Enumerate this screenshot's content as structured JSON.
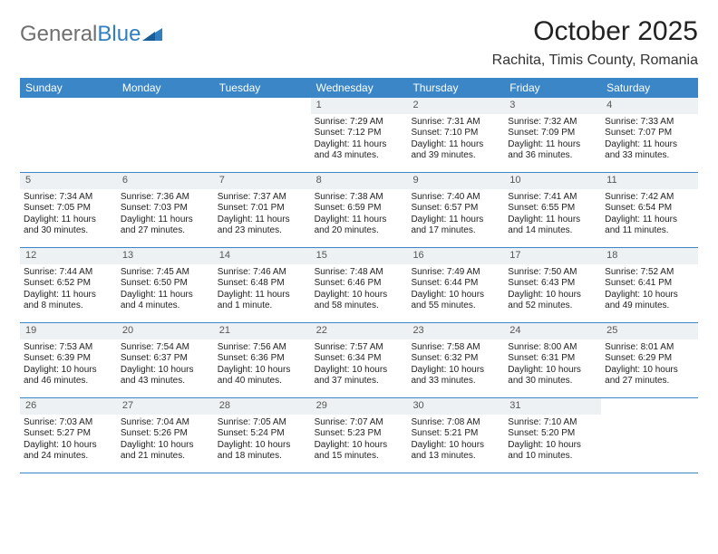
{
  "logo": {
    "text_gray": "General",
    "text_blue": "Blue"
  },
  "header": {
    "month_title": "October 2025",
    "location": "Rachita, Timis County, Romania"
  },
  "colors": {
    "header_bar": "#3b86c6",
    "daynum_bg": "#eef1f3",
    "row_border": "#3b86c6",
    "logo_gray": "#6f6f6f",
    "logo_blue": "#2f7fc1"
  },
  "day_names": [
    "Sunday",
    "Monday",
    "Tuesday",
    "Wednesday",
    "Thursday",
    "Friday",
    "Saturday"
  ],
  "weeks": [
    [
      {
        "n": "",
        "lines": []
      },
      {
        "n": "",
        "lines": []
      },
      {
        "n": "",
        "lines": []
      },
      {
        "n": "1",
        "lines": [
          "Sunrise: 7:29 AM",
          "Sunset: 7:12 PM",
          "Daylight: 11 hours",
          "and 43 minutes."
        ]
      },
      {
        "n": "2",
        "lines": [
          "Sunrise: 7:31 AM",
          "Sunset: 7:10 PM",
          "Daylight: 11 hours",
          "and 39 minutes."
        ]
      },
      {
        "n": "3",
        "lines": [
          "Sunrise: 7:32 AM",
          "Sunset: 7:09 PM",
          "Daylight: 11 hours",
          "and 36 minutes."
        ]
      },
      {
        "n": "4",
        "lines": [
          "Sunrise: 7:33 AM",
          "Sunset: 7:07 PM",
          "Daylight: 11 hours",
          "and 33 minutes."
        ]
      }
    ],
    [
      {
        "n": "5",
        "lines": [
          "Sunrise: 7:34 AM",
          "Sunset: 7:05 PM",
          "Daylight: 11 hours",
          "and 30 minutes."
        ]
      },
      {
        "n": "6",
        "lines": [
          "Sunrise: 7:36 AM",
          "Sunset: 7:03 PM",
          "Daylight: 11 hours",
          "and 27 minutes."
        ]
      },
      {
        "n": "7",
        "lines": [
          "Sunrise: 7:37 AM",
          "Sunset: 7:01 PM",
          "Daylight: 11 hours",
          "and 23 minutes."
        ]
      },
      {
        "n": "8",
        "lines": [
          "Sunrise: 7:38 AM",
          "Sunset: 6:59 PM",
          "Daylight: 11 hours",
          "and 20 minutes."
        ]
      },
      {
        "n": "9",
        "lines": [
          "Sunrise: 7:40 AM",
          "Sunset: 6:57 PM",
          "Daylight: 11 hours",
          "and 17 minutes."
        ]
      },
      {
        "n": "10",
        "lines": [
          "Sunrise: 7:41 AM",
          "Sunset: 6:55 PM",
          "Daylight: 11 hours",
          "and 14 minutes."
        ]
      },
      {
        "n": "11",
        "lines": [
          "Sunrise: 7:42 AM",
          "Sunset: 6:54 PM",
          "Daylight: 11 hours",
          "and 11 minutes."
        ]
      }
    ],
    [
      {
        "n": "12",
        "lines": [
          "Sunrise: 7:44 AM",
          "Sunset: 6:52 PM",
          "Daylight: 11 hours",
          "and 8 minutes."
        ]
      },
      {
        "n": "13",
        "lines": [
          "Sunrise: 7:45 AM",
          "Sunset: 6:50 PM",
          "Daylight: 11 hours",
          "and 4 minutes."
        ]
      },
      {
        "n": "14",
        "lines": [
          "Sunrise: 7:46 AM",
          "Sunset: 6:48 PM",
          "Daylight: 11 hours",
          "and 1 minute."
        ]
      },
      {
        "n": "15",
        "lines": [
          "Sunrise: 7:48 AM",
          "Sunset: 6:46 PM",
          "Daylight: 10 hours",
          "and 58 minutes."
        ]
      },
      {
        "n": "16",
        "lines": [
          "Sunrise: 7:49 AM",
          "Sunset: 6:44 PM",
          "Daylight: 10 hours",
          "and 55 minutes."
        ]
      },
      {
        "n": "17",
        "lines": [
          "Sunrise: 7:50 AM",
          "Sunset: 6:43 PM",
          "Daylight: 10 hours",
          "and 52 minutes."
        ]
      },
      {
        "n": "18",
        "lines": [
          "Sunrise: 7:52 AM",
          "Sunset: 6:41 PM",
          "Daylight: 10 hours",
          "and 49 minutes."
        ]
      }
    ],
    [
      {
        "n": "19",
        "lines": [
          "Sunrise: 7:53 AM",
          "Sunset: 6:39 PM",
          "Daylight: 10 hours",
          "and 46 minutes."
        ]
      },
      {
        "n": "20",
        "lines": [
          "Sunrise: 7:54 AM",
          "Sunset: 6:37 PM",
          "Daylight: 10 hours",
          "and 43 minutes."
        ]
      },
      {
        "n": "21",
        "lines": [
          "Sunrise: 7:56 AM",
          "Sunset: 6:36 PM",
          "Daylight: 10 hours",
          "and 40 minutes."
        ]
      },
      {
        "n": "22",
        "lines": [
          "Sunrise: 7:57 AM",
          "Sunset: 6:34 PM",
          "Daylight: 10 hours",
          "and 37 minutes."
        ]
      },
      {
        "n": "23",
        "lines": [
          "Sunrise: 7:58 AM",
          "Sunset: 6:32 PM",
          "Daylight: 10 hours",
          "and 33 minutes."
        ]
      },
      {
        "n": "24",
        "lines": [
          "Sunrise: 8:00 AM",
          "Sunset: 6:31 PM",
          "Daylight: 10 hours",
          "and 30 minutes."
        ]
      },
      {
        "n": "25",
        "lines": [
          "Sunrise: 8:01 AM",
          "Sunset: 6:29 PM",
          "Daylight: 10 hours",
          "and 27 minutes."
        ]
      }
    ],
    [
      {
        "n": "26",
        "lines": [
          "Sunrise: 7:03 AM",
          "Sunset: 5:27 PM",
          "Daylight: 10 hours",
          "and 24 minutes."
        ]
      },
      {
        "n": "27",
        "lines": [
          "Sunrise: 7:04 AM",
          "Sunset: 5:26 PM",
          "Daylight: 10 hours",
          "and 21 minutes."
        ]
      },
      {
        "n": "28",
        "lines": [
          "Sunrise: 7:05 AM",
          "Sunset: 5:24 PM",
          "Daylight: 10 hours",
          "and 18 minutes."
        ]
      },
      {
        "n": "29",
        "lines": [
          "Sunrise: 7:07 AM",
          "Sunset: 5:23 PM",
          "Daylight: 10 hours",
          "and 15 minutes."
        ]
      },
      {
        "n": "30",
        "lines": [
          "Sunrise: 7:08 AM",
          "Sunset: 5:21 PM",
          "Daylight: 10 hours",
          "and 13 minutes."
        ]
      },
      {
        "n": "31",
        "lines": [
          "Sunrise: 7:10 AM",
          "Sunset: 5:20 PM",
          "Daylight: 10 hours",
          "and 10 minutes."
        ]
      },
      {
        "n": "",
        "lines": []
      }
    ]
  ]
}
